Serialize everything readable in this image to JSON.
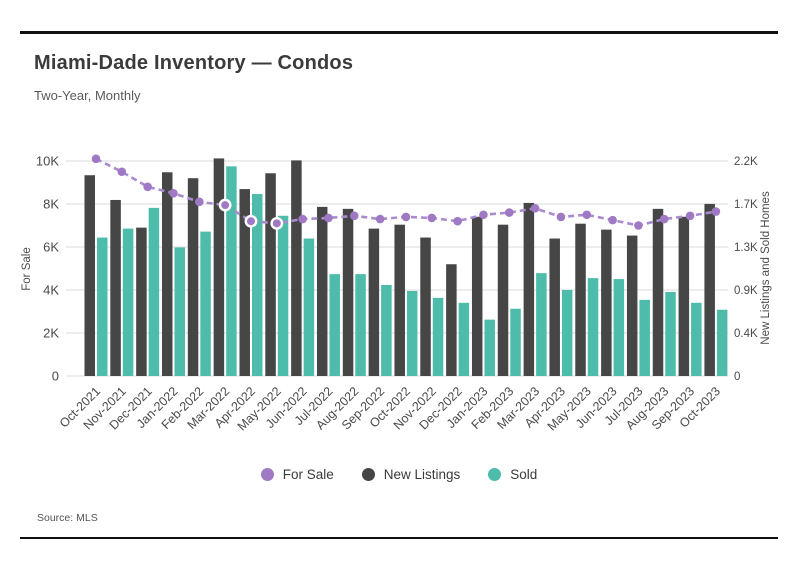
{
  "header": {
    "title": "Miami-Dade Inventory — Condos",
    "subtitle": "Two-Year, Monthly"
  },
  "footer": {
    "source": "Source: MLS"
  },
  "colors": {
    "for_sale": "#9f79c4",
    "for_sale_line": "#a98bce",
    "new_listings": "#464646",
    "sold": "#4dbcaa",
    "grid": "#e2e2e2"
  },
  "legend": [
    {
      "label": "For Sale",
      "series": "for_sale"
    },
    {
      "label": "New Listings",
      "series": "new_listings"
    },
    {
      "label": "Sold",
      "series": "sold"
    }
  ],
  "chart_data": {
    "type": "bar",
    "subtype": "grouped bars with dashed line overlay, dual y-axes",
    "title": "Miami-Dade Inventory — Condos",
    "subtitle": "Two-Year, Monthly",
    "categories": [
      "Oct-2021",
      "Nov-2021",
      "Dec-2021",
      "Jan-2022",
      "Feb-2022",
      "Mar-2022",
      "Apr-2022",
      "May-2022",
      "Jun-2022",
      "Jul-2022",
      "Aug-2022",
      "Sep-2022",
      "Oct-2022",
      "Nov-2022",
      "Dec-2022",
      "Jan-2023",
      "Feb-2023",
      "Mar-2023",
      "Apr-2023",
      "May-2023",
      "Jun-2023",
      "Jul-2023",
      "Aug-2023",
      "Sep-2023",
      "Oct-2023"
    ],
    "series": [
      {
        "name": "For Sale",
        "type": "line",
        "axis": "left",
        "unit": "thousands",
        "values": [
          10.1,
          9.5,
          8.8,
          8.5,
          8.1,
          7.95,
          7.2,
          7.1,
          7.3,
          7.35,
          7.45,
          7.3,
          7.4,
          7.35,
          7.2,
          7.5,
          7.6,
          7.8,
          7.4,
          7.5,
          7.25,
          7.0,
          7.3,
          7.45,
          7.65
        ]
      },
      {
        "name": "New Listings",
        "type": "bar",
        "axis": "right",
        "unit": "thousands",
        "values": [
          2.03,
          1.78,
          1.5,
          2.06,
          2.0,
          2.2,
          1.89,
          2.05,
          2.18,
          1.71,
          1.69,
          1.49,
          1.53,
          1.4,
          1.13,
          1.61,
          1.53,
          1.75,
          1.39,
          1.54,
          1.48,
          1.42,
          1.69,
          1.61,
          1.74
        ]
      },
      {
        "name": "Sold",
        "type": "bar",
        "axis": "right",
        "unit": "thousands",
        "values": [
          1.4,
          1.49,
          1.7,
          1.3,
          1.46,
          2.12,
          1.84,
          1.62,
          1.39,
          1.03,
          1.03,
          0.92,
          0.86,
          0.79,
          0.74,
          0.57,
          0.68,
          1.04,
          0.87,
          0.99,
          0.98,
          0.77,
          0.85,
          0.74,
          0.67
        ]
      }
    ],
    "left_axis": {
      "label": "For Sale",
      "ticks": [
        "0",
        "2K",
        "4K",
        "6K",
        "8K",
        "10K"
      ],
      "tick_values": [
        0,
        2,
        4,
        6,
        8,
        10
      ],
      "range": [
        0,
        10.56
      ]
    },
    "right_axis": {
      "label": "New Listings and Sold Homes",
      "ticks": [
        "0",
        "0.4K",
        "0.9K",
        "1.3K",
        "1.7K",
        "2.2K"
      ],
      "range": [
        0,
        2.296
      ]
    },
    "grid": true,
    "legend_position": "bottom",
    "line_style": "dashed with circular markers",
    "ring_marker_indices": [
      5,
      6,
      7
    ]
  }
}
